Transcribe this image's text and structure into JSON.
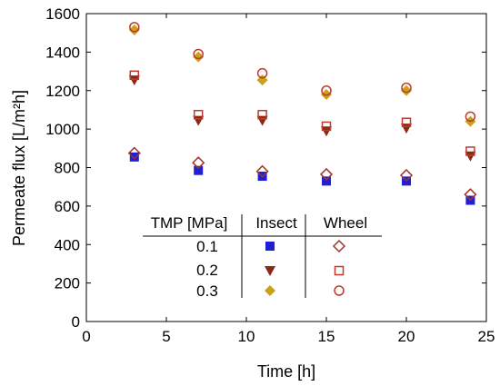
{
  "chart_data": {
    "type": "scatter",
    "xlabel": "Time [h]",
    "ylabel": "Permeate flux [L/m²h]",
    "xlim": [
      0,
      25
    ],
    "ylim": [
      0,
      1600
    ],
    "xticks": [
      0,
      5,
      10,
      15,
      20,
      25
    ],
    "yticks": [
      0,
      200,
      400,
      600,
      800,
      1000,
      1200,
      1400,
      1600
    ],
    "legend": {
      "placement": "bottom-center",
      "header": [
        "TMP [MPa]",
        "Insect",
        "Wheel"
      ],
      "rows": [
        "0.1",
        "0.2",
        "0.3"
      ]
    },
    "series": [
      {
        "name": "Insect 0.1",
        "marker": "square",
        "color": "#1f1fd6",
        "x": [
          3,
          7,
          11,
          15,
          20,
          24
        ],
        "y": [
          855,
          785,
          755,
          730,
          730,
          630
        ]
      },
      {
        "name": "Insect 0.2",
        "marker": "triangle-down",
        "color": "#8b2a12",
        "x": [
          3,
          7,
          11,
          15,
          20,
          24
        ],
        "y": [
          1255,
          1045,
          1045,
          990,
          1005,
          860
        ]
      },
      {
        "name": "Insect 0.3",
        "marker": "diamond",
        "color": "#c9a21a",
        "x": [
          3,
          7,
          11,
          15,
          20,
          24
        ],
        "y": [
          1515,
          1375,
          1255,
          1180,
          1200,
          1040
        ]
      },
      {
        "name": "Wheel 0.1",
        "marker": "diamond-open",
        "color": "#a0342a",
        "x": [
          3,
          7,
          11,
          15,
          20,
          24
        ],
        "y": [
          875,
          825,
          780,
          765,
          760,
          660
        ]
      },
      {
        "name": "Wheel 0.2",
        "marker": "square-open",
        "color": "#c0392b",
        "x": [
          3,
          7,
          11,
          15,
          20,
          24
        ],
        "y": [
          1280,
          1075,
          1075,
          1015,
          1035,
          885
        ]
      },
      {
        "name": "Wheel 0.3",
        "marker": "circle-open",
        "color": "#c0392b",
        "x": [
          3,
          7,
          11,
          15,
          20,
          24
        ],
        "y": [
          1530,
          1390,
          1290,
          1200,
          1215,
          1065
        ]
      }
    ]
  }
}
